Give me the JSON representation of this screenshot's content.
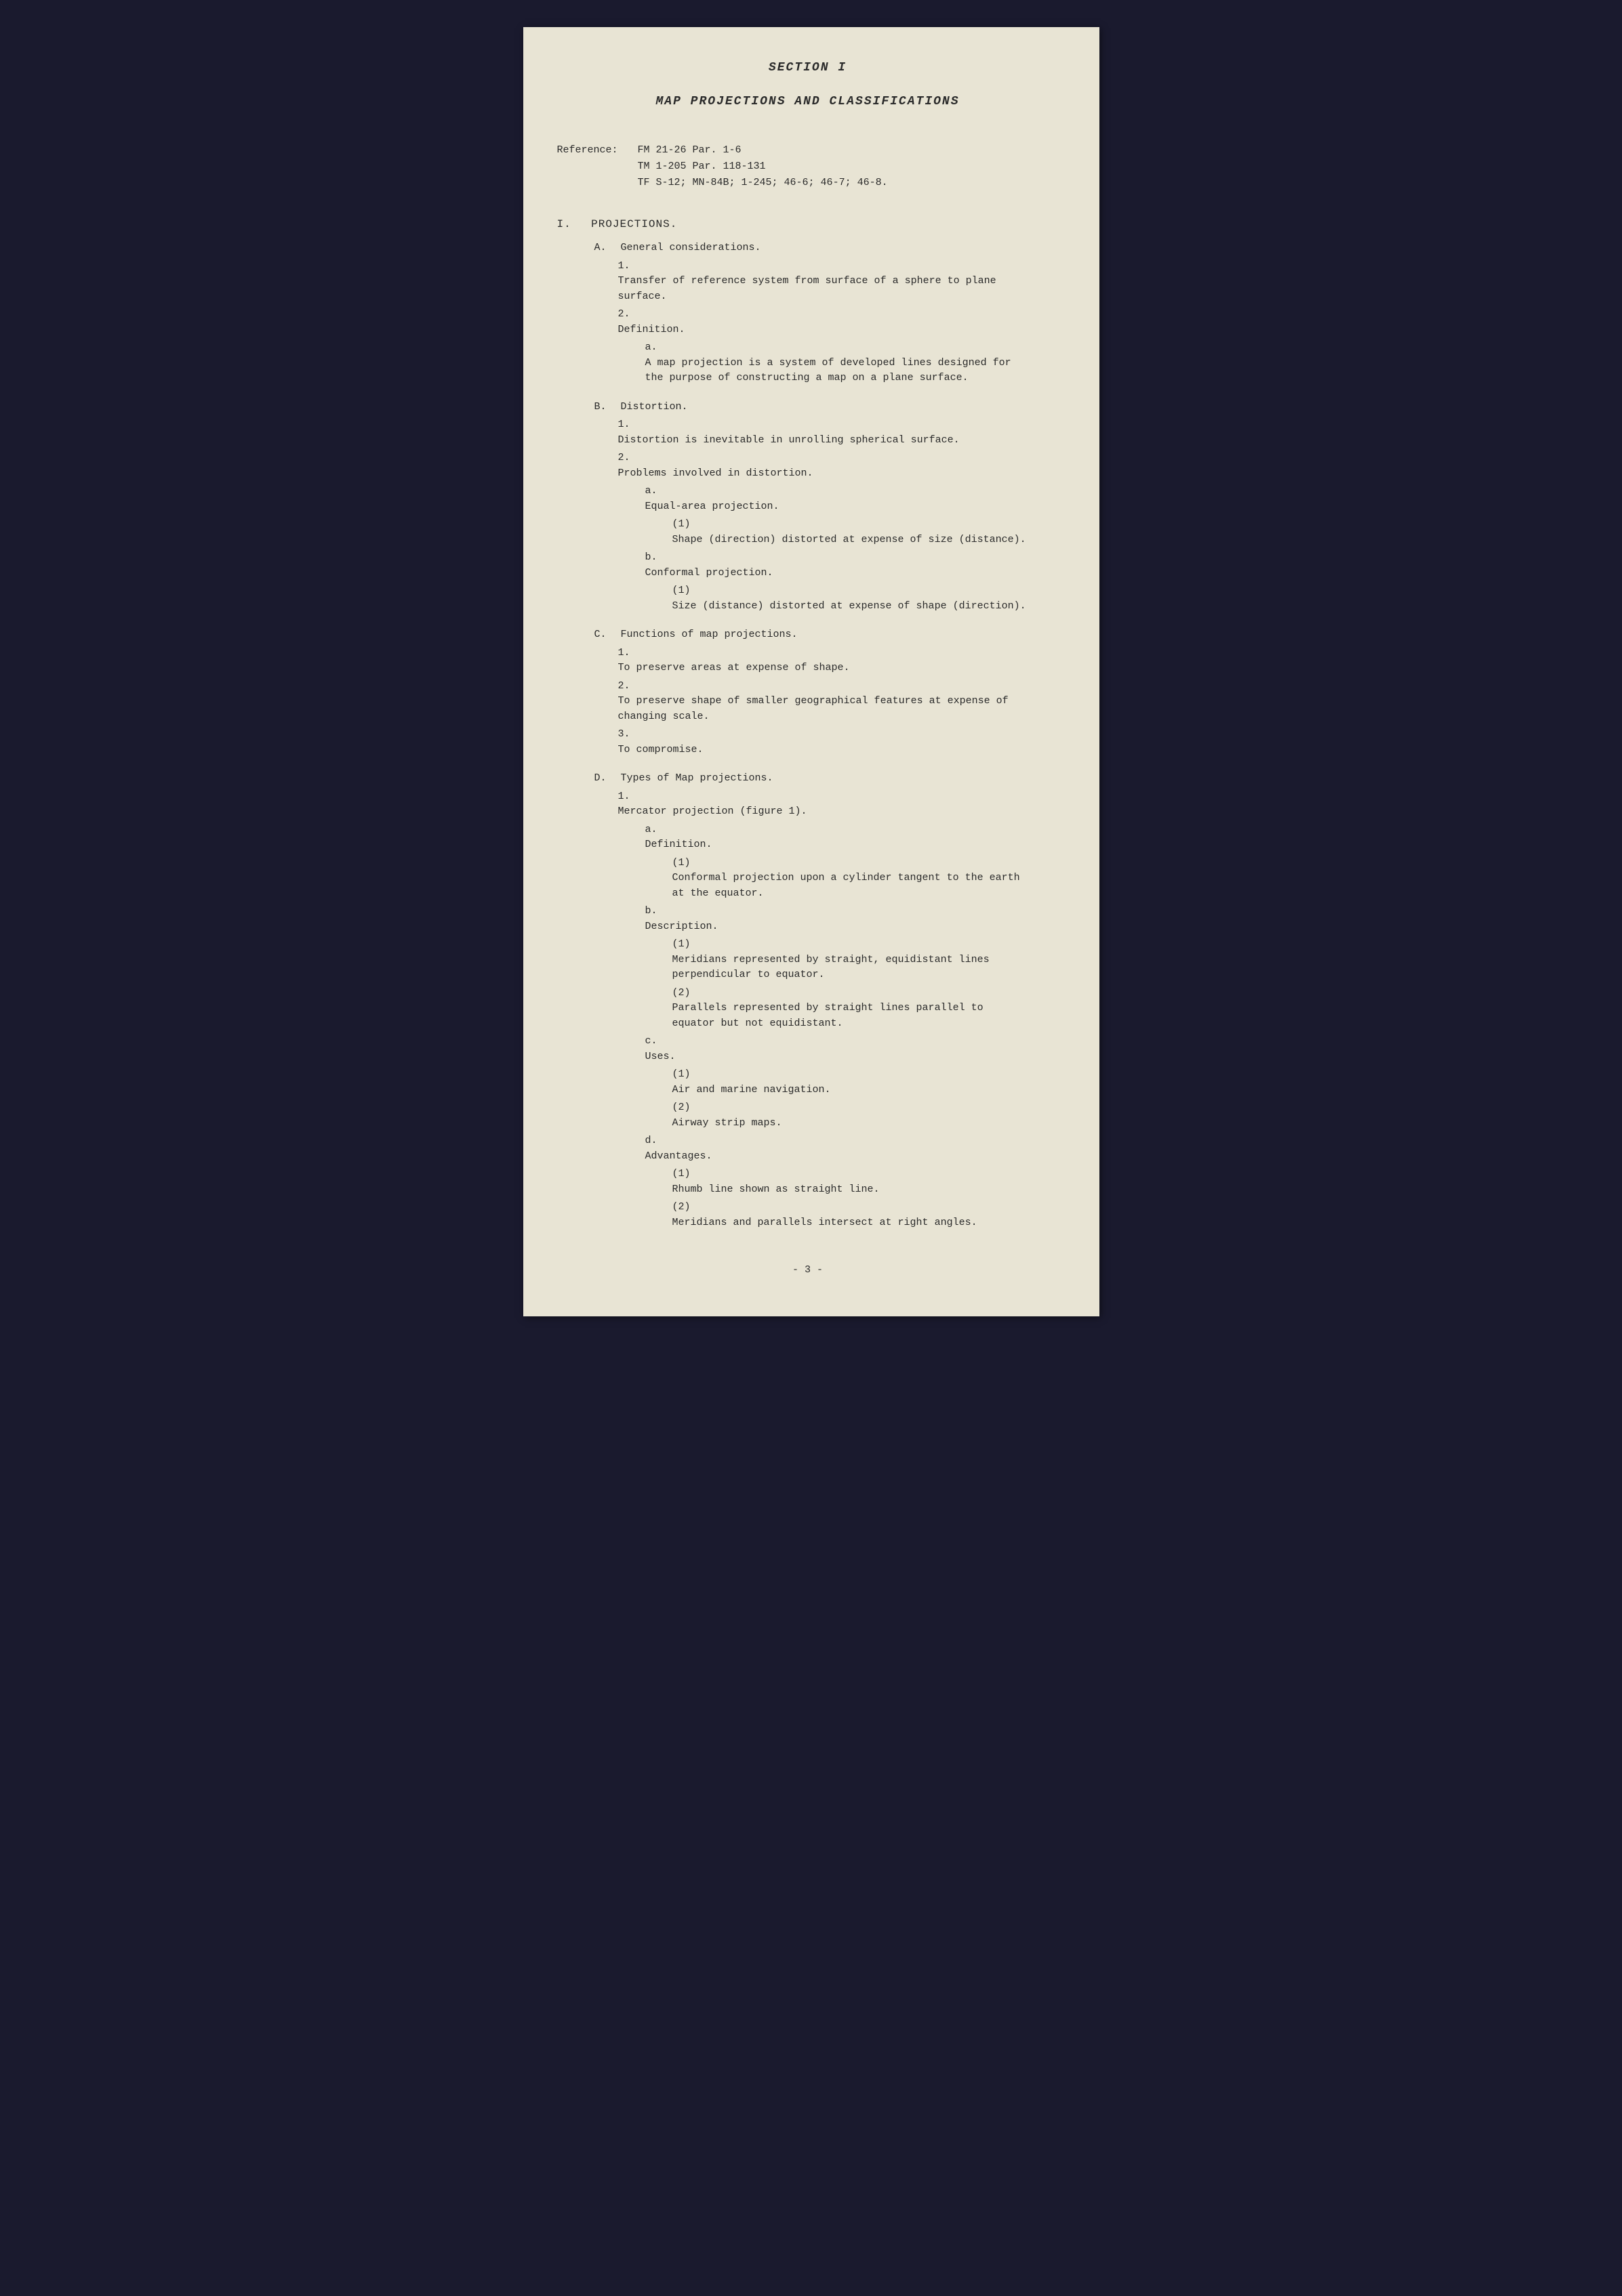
{
  "section_title": "SECTION I",
  "main_title": "MAP PROJECTIONS AND CLASSIFICATIONS",
  "reference": {
    "label": "Reference:",
    "line1": "FM 21-26  Par. 1-6",
    "line2": "TM 1-205  Par. 118-131",
    "line3": "TF S-12;  MN-84B;  1-245;  46-6;  46-7;  46-8."
  },
  "section_I": {
    "num": "I.",
    "title": "PROJECTIONS.",
    "A": {
      "label": "A.",
      "title": "General considerations.",
      "item1": {
        "label": "1.",
        "text": "Transfer of reference system from surface of a sphere to plane surface."
      },
      "item2": {
        "label": "2.",
        "text": "Definition.",
        "a": {
          "label": "a.",
          "text": "A map projection is a system of developed lines designed for the purpose of constructing a map on a plane surface."
        }
      }
    },
    "B": {
      "label": "B.",
      "title": "Distortion.",
      "item1": {
        "label": "1.",
        "text": "Distortion is inevitable in unrolling spherical surface."
      },
      "item2": {
        "label": "2.",
        "text": "Problems involved in distortion.",
        "a": {
          "label": "a.",
          "text": "Equal-area projection.",
          "p1": {
            "label": "(1)",
            "text": "Shape (direction) distorted at expense of size (distance)."
          }
        },
        "b": {
          "label": "b.",
          "text": "Conformal projection.",
          "p1": {
            "label": "(1)",
            "text": "Size (distance) distorted at expense of shape (direction)."
          }
        }
      }
    },
    "C": {
      "label": "C.",
      "title": "Functions of map projections.",
      "item1": {
        "label": "1.",
        "text": "To preserve areas at expense of shape."
      },
      "item2": {
        "label": "2.",
        "text": "To preserve shape of smaller geographical features at expense of changing scale."
      },
      "item3": {
        "label": "3.",
        "text": "To compromise."
      }
    },
    "D": {
      "label": "D.",
      "title": "Types of Map projections.",
      "item1": {
        "label": "1.",
        "text": "Mercator projection (figure 1).",
        "a": {
          "label": "a.",
          "text": "Definition.",
          "p1": {
            "label": "(1)",
            "text": "Conformal projection upon a cylinder tangent to the earth at the equator."
          }
        },
        "b": {
          "label": "b.",
          "text": "Description.",
          "p1": {
            "label": "(1)",
            "text": "Meridians represented by straight, equidistant lines perpendicular to equator."
          },
          "p2": {
            "label": "(2)",
            "text": "Parallels represented by straight lines parallel to equator but not equidistant."
          }
        },
        "c": {
          "label": "c.",
          "text": "Uses.",
          "p1": {
            "label": "(1)",
            "text": "Air and marine navigation."
          },
          "p2": {
            "label": "(2)",
            "text": "Airway strip maps."
          }
        },
        "d": {
          "label": "d.",
          "text": "Advantages.",
          "p1": {
            "label": "(1)",
            "text": "Rhumb line shown as straight line."
          },
          "p2": {
            "label": "(2)",
            "text": "Meridians and parallels intersect at right angles."
          }
        }
      }
    }
  },
  "page_number": "- 3 -"
}
